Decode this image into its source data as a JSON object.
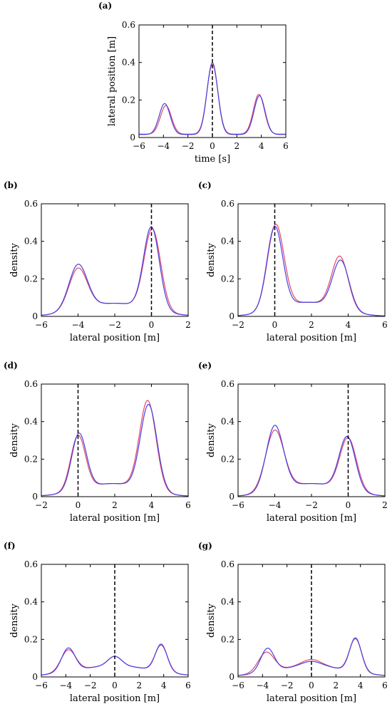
{
  "chart_data": [
    {
      "id": "a",
      "panel_label": "(a)",
      "type": "line",
      "xlabel": "time [s]",
      "ylabel": "lateral position [m]",
      "xlim": [
        -6,
        6
      ],
      "ylim": [
        0,
        0.6
      ],
      "xticks": [
        -6,
        -4,
        -2,
        0,
        2,
        4,
        6
      ],
      "yticks": [
        0,
        0.2,
        0.4,
        0.6
      ],
      "xticklabels": [
        "−6",
        "−4",
        "−2",
        "0",
        "2",
        "4",
        "6"
      ],
      "yticklabels": [
        "0",
        "0.2",
        "0.4",
        "0.6"
      ],
      "vline_x": 0,
      "series": [
        {
          "color": "#e0486c",
          "base": 0.018,
          "peaks": [
            {
              "mu": -3.8,
              "amp": 0.152,
              "sigma": 0.45
            },
            {
              "mu": 0,
              "amp": 0.372,
              "sigma": 0.45
            },
            {
              "mu": 3.8,
              "amp": 0.212,
              "sigma": 0.45
            }
          ]
        },
        {
          "color": "#4a3fe0",
          "base": 0.016,
          "peaks": [
            {
              "mu": -3.9,
              "amp": 0.165,
              "sigma": 0.45
            },
            {
              "mu": 0,
              "amp": 0.382,
              "sigma": 0.44
            },
            {
              "mu": 3.85,
              "amp": 0.207,
              "sigma": 0.45
            }
          ]
        }
      ]
    },
    {
      "id": "b",
      "panel_label": "(b)",
      "type": "line",
      "xlabel": "lateral position [m]",
      "ylabel": "density",
      "xlim": [
        -6,
        2
      ],
      "ylim": [
        0,
        0.6
      ],
      "xticks": [
        -6,
        -4,
        -2,
        0,
        2
      ],
      "yticks": [
        0,
        0.2,
        0.4,
        0.6
      ],
      "xticklabels": [
        "−6",
        "−4",
        "−2",
        "0",
        "2"
      ],
      "yticklabels": [
        "0",
        "0.2",
        "0.4",
        "0.6"
      ],
      "vline_x": 0,
      "series": [
        {
          "color": "#e0486c",
          "base": 0.0,
          "peaks": [
            {
              "mu": -4.0,
              "amp": 0.22,
              "sigma": 0.5
            },
            {
              "mu": 0.05,
              "amp": 0.43,
              "sigma": 0.45
            },
            {
              "mu": -2.0,
              "amp": 0.07,
              "sigma": 1.8
            }
          ]
        },
        {
          "color": "#4a3fe0",
          "base": 0.0,
          "peaks": [
            {
              "mu": -4.0,
              "amp": 0.24,
              "sigma": 0.5
            },
            {
              "mu": 0.0,
              "amp": 0.44,
              "sigma": 0.43
            },
            {
              "mu": -2.0,
              "amp": 0.07,
              "sigma": 1.8
            }
          ]
        }
      ]
    },
    {
      "id": "c",
      "panel_label": "(c)",
      "type": "line",
      "xlabel": "lateral position [m]",
      "ylabel": "density",
      "xlim": [
        -2,
        6
      ],
      "ylim": [
        0,
        0.6
      ],
      "xticks": [
        -2,
        0,
        2,
        4,
        6
      ],
      "yticks": [
        0,
        0.2,
        0.4,
        0.6
      ],
      "xticklabels": [
        "−2",
        "0",
        "2",
        "4",
        "6"
      ],
      "yticklabels": [
        "0",
        "0.2",
        "0.4",
        "0.6"
      ],
      "vline_x": 0,
      "series": [
        {
          "color": "#e0486c",
          "base": 0.0,
          "peaks": [
            {
              "mu": 0.05,
              "amp": 0.45,
              "sigma": 0.45
            },
            {
              "mu": 3.55,
              "amp": 0.28,
              "sigma": 0.45
            },
            {
              "mu": 1.8,
              "amp": 0.075,
              "sigma": 1.6
            }
          ]
        },
        {
          "color": "#4a3fe0",
          "base": 0.0,
          "peaks": [
            {
              "mu": 0.0,
              "amp": 0.44,
              "sigma": 0.43
            },
            {
              "mu": 3.6,
              "amp": 0.26,
              "sigma": 0.45
            },
            {
              "mu": 1.8,
              "amp": 0.075,
              "sigma": 1.6
            }
          ]
        }
      ]
    },
    {
      "id": "d",
      "panel_label": "(d)",
      "type": "line",
      "xlabel": "lateral position [m]",
      "ylabel": "density",
      "xlim": [
        -2,
        6
      ],
      "ylim": [
        0,
        0.6
      ],
      "xticks": [
        -2,
        0,
        2,
        4,
        6
      ],
      "yticks": [
        0,
        0.2,
        0.4,
        0.6
      ],
      "xticklabels": [
        "−2",
        "0",
        "2",
        "4",
        "6"
      ],
      "yticklabels": [
        "0",
        "0.2",
        "0.4",
        "0.6"
      ],
      "vline_x": 0,
      "series": [
        {
          "color": "#e0486c",
          "base": 0.0,
          "peaks": [
            {
              "mu": 0.0,
              "amp": 0.29,
              "sigma": 0.4
            },
            {
              "mu": 3.8,
              "amp": 0.475,
              "sigma": 0.45
            },
            {
              "mu": 1.9,
              "amp": 0.07,
              "sigma": 1.7
            }
          ]
        },
        {
          "color": "#4a3fe0",
          "base": 0.0,
          "peaks": [
            {
              "mu": 0.05,
              "amp": 0.3,
              "sigma": 0.4
            },
            {
              "mu": 3.85,
              "amp": 0.455,
              "sigma": 0.45
            },
            {
              "mu": 1.9,
              "amp": 0.07,
              "sigma": 1.7
            }
          ]
        }
      ]
    },
    {
      "id": "e",
      "panel_label": "(e)",
      "type": "line",
      "xlabel": "lateral position [m]",
      "ylabel": "density",
      "xlim": [
        -6,
        2
      ],
      "ylim": [
        0,
        0.6
      ],
      "xticks": [
        -6,
        -4,
        -2,
        0,
        2
      ],
      "yticks": [
        0,
        0.2,
        0.4,
        0.6
      ],
      "xticklabels": [
        "−6",
        "−4",
        "−2",
        "0",
        "2"
      ],
      "yticklabels": [
        "0",
        "0.2",
        "0.4",
        "0.6"
      ],
      "vline_x": 0,
      "series": [
        {
          "color": "#e0486c",
          "base": 0.0,
          "peaks": [
            {
              "mu": -4.0,
              "amp": 0.32,
              "sigma": 0.5
            },
            {
              "mu": 0.0,
              "amp": 0.28,
              "sigma": 0.45
            },
            {
              "mu": -2.0,
              "amp": 0.07,
              "sigma": 1.7
            }
          ]
        },
        {
          "color": "#4a3fe0",
          "base": 0.0,
          "peaks": [
            {
              "mu": -4.0,
              "amp": 0.345,
              "sigma": 0.47
            },
            {
              "mu": -0.05,
              "amp": 0.285,
              "sigma": 0.44
            },
            {
              "mu": -2.0,
              "amp": 0.07,
              "sigma": 1.7
            }
          ]
        }
      ]
    },
    {
      "id": "f",
      "panel_label": "(f)",
      "type": "line",
      "xlabel": "lateral position [m]",
      "ylabel": "density",
      "xlim": [
        -6,
        6
      ],
      "ylim": [
        0,
        0.6
      ],
      "xticks": [
        -6,
        -4,
        -2,
        0,
        2,
        4,
        6
      ],
      "yticks": [
        0,
        0.2,
        0.4,
        0.6
      ],
      "xticklabels": [
        "−6",
        "−4",
        "−2",
        "0",
        "2",
        "4",
        "6"
      ],
      "yticklabels": [
        "0",
        "0.2",
        "0.4",
        "0.6"
      ],
      "vline_x": 0,
      "series": [
        {
          "color": "#e0486c",
          "base": 0.0,
          "peaks": [
            {
              "mu": -3.8,
              "amp": 0.115,
              "sigma": 0.6
            },
            {
              "mu": 0.0,
              "amp": 0.05,
              "sigma": 0.55
            },
            {
              "mu": 3.8,
              "amp": 0.14,
              "sigma": 0.5
            },
            {
              "mu": 0.0,
              "amp": 0.06,
              "sigma": 3.2
            }
          ]
        },
        {
          "color": "#4a3fe0",
          "base": 0.0,
          "peaks": [
            {
              "mu": -3.8,
              "amp": 0.125,
              "sigma": 0.55
            },
            {
              "mu": 0.0,
              "amp": 0.05,
              "sigma": 0.55
            },
            {
              "mu": 3.8,
              "amp": 0.145,
              "sigma": 0.48
            },
            {
              "mu": 0.0,
              "amp": 0.06,
              "sigma": 3.2
            }
          ]
        }
      ]
    },
    {
      "id": "g",
      "panel_label": "(g)",
      "type": "line",
      "xlabel": "lateral position [m]",
      "ylabel": "density",
      "xlim": [
        -6,
        6
      ],
      "ylim": [
        0,
        0.6
      ],
      "xticks": [
        -6,
        -4,
        -2,
        0,
        2,
        4,
        6
      ],
      "yticks": [
        0,
        0.2,
        0.4,
        0.6
      ],
      "xticklabels": [
        "−6",
        "−4",
        "−2",
        "0",
        "2",
        "4",
        "6"
      ],
      "yticklabels": [
        "0",
        "0.2",
        "0.4",
        "0.6"
      ],
      "vline_x": 0,
      "series": [
        {
          "color": "#e0486c",
          "base": 0.0,
          "peaks": [
            {
              "mu": -3.7,
              "amp": 0.105,
              "sigma": 0.65
            },
            {
              "mu": 0.0,
              "amp": 0.035,
              "sigma": 0.8
            },
            {
              "mu": 3.6,
              "amp": 0.175,
              "sigma": 0.5
            },
            {
              "mu": 0.0,
              "amp": 0.058,
              "sigma": 3.0
            }
          ]
        },
        {
          "color": "#4a3fe0",
          "base": 0.0,
          "peaks": [
            {
              "mu": -3.6,
              "amp": 0.125,
              "sigma": 0.55
            },
            {
              "mu": 0.0,
              "amp": 0.025,
              "sigma": 0.8
            },
            {
              "mu": 3.6,
              "amp": 0.18,
              "sigma": 0.48
            },
            {
              "mu": 0.0,
              "amp": 0.058,
              "sigma": 3.0
            }
          ]
        }
      ]
    }
  ]
}
